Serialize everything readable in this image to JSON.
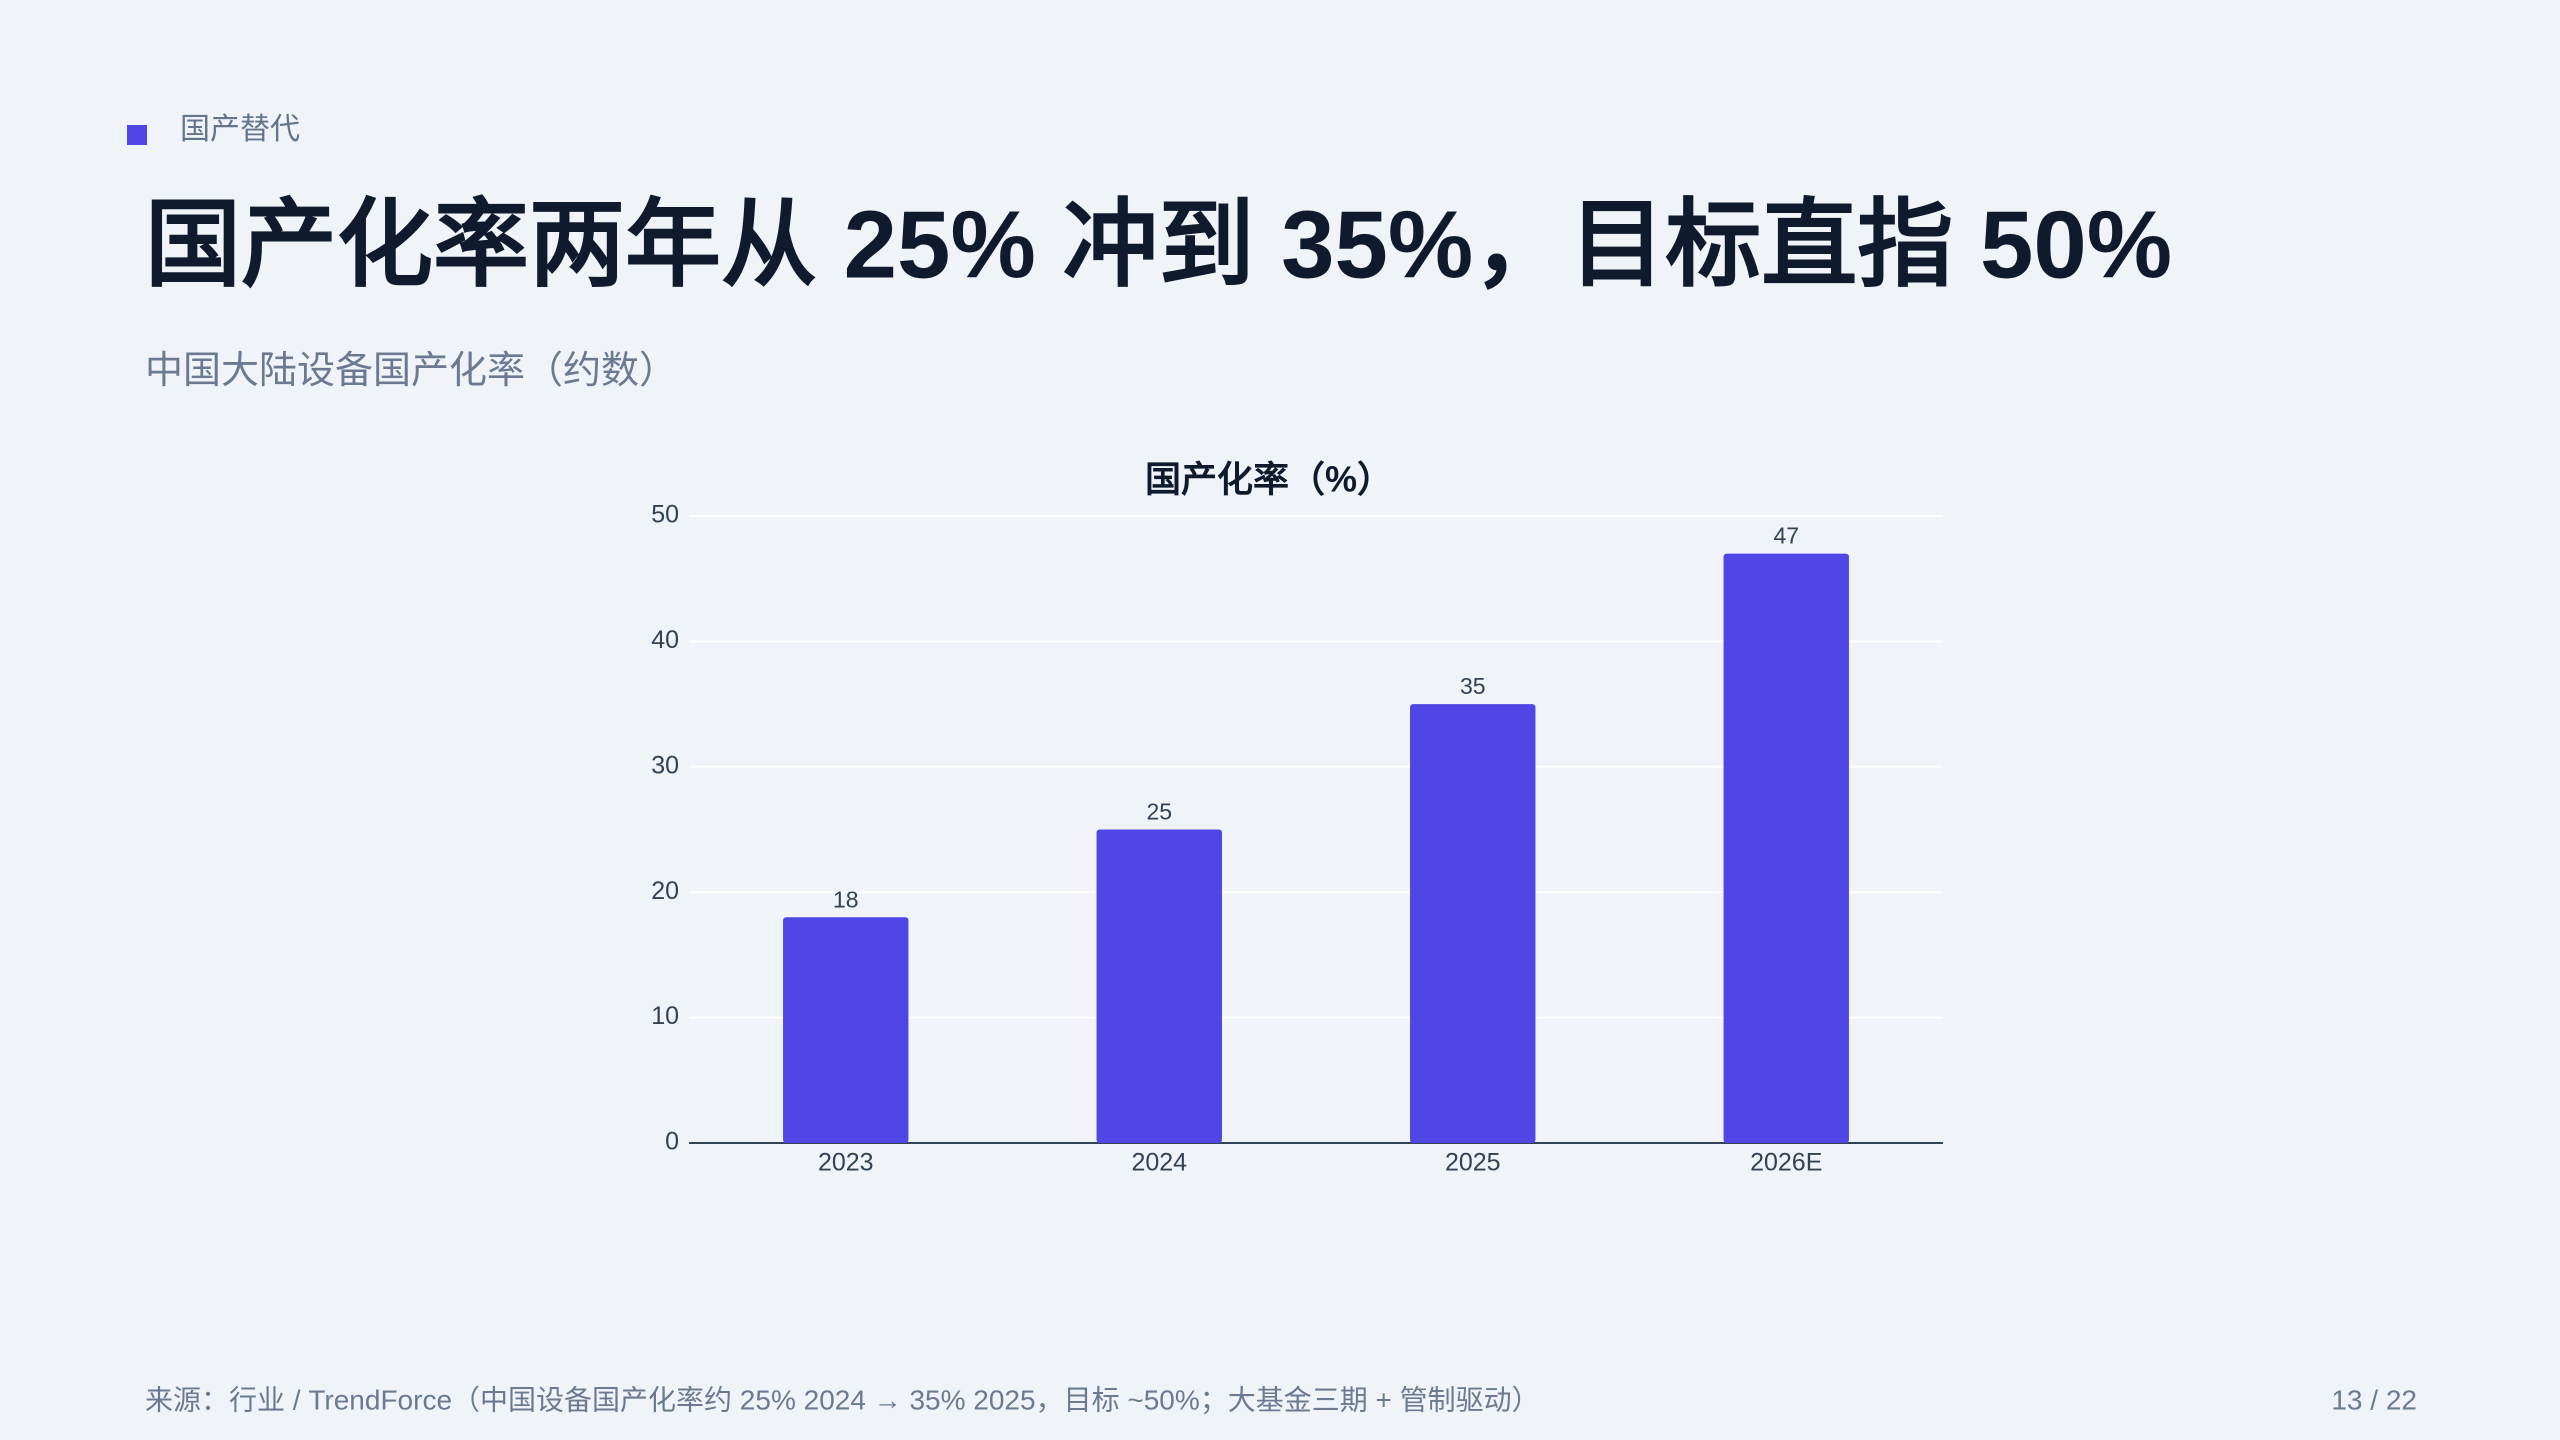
{
  "tag": "国产替代",
  "title": "国产化率两年从 25% 冲到 35%，目标直指 50%",
  "subtitle": "中国大陆设备国产化率（约数）",
  "chart_data": {
    "type": "bar",
    "title": "国产化率（%）",
    "categories": [
      "2023",
      "2024",
      "2025",
      "2026E"
    ],
    "values": [
      18,
      25,
      35,
      47
    ],
    "color": "#4f46e5",
    "ylim": [
      0,
      50
    ],
    "yticks": [
      0,
      10,
      20,
      30,
      40,
      50
    ],
    "grid": true
  },
  "footer": {
    "source": "来源：行业 / TrendForce（中国设备国产化率约 25% 2024 → 35% 2025，目标 ~50%；大基金三期 + 管制驱动）",
    "page": "13 / 22"
  }
}
